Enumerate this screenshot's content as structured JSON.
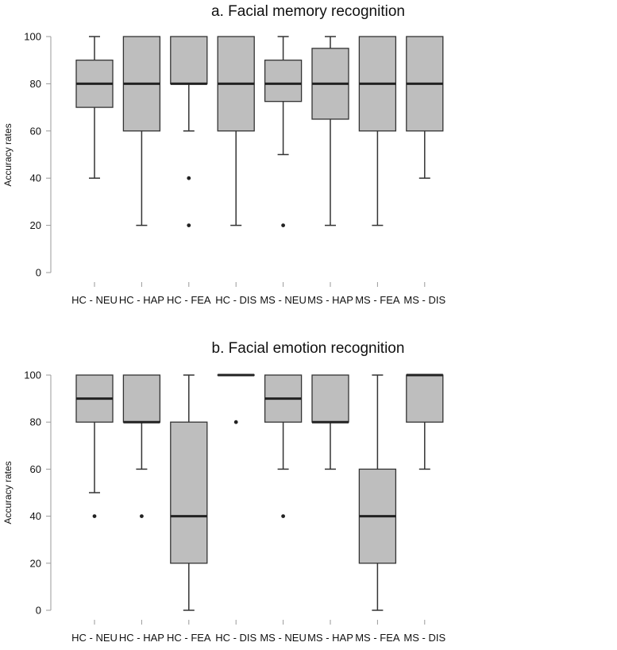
{
  "chart_data": [
    {
      "type": "boxplot",
      "title": "a. Facial memory recognition",
      "ylabel": "Accuracy rates",
      "xlabel": "",
      "ylim": [
        0,
        100
      ],
      "yticks": [
        0,
        20,
        40,
        60,
        80,
        100
      ],
      "categories": [
        "HC - NEU",
        "HC - HAP",
        "HC - FEA",
        "HC - DIS",
        "MS - NEU",
        "MS - HAP",
        "MS - FEA",
        "MS - DIS"
      ],
      "boxes": [
        {
          "min": 40,
          "q1": 70,
          "median": 80,
          "q3": 90,
          "max": 100,
          "outliers": []
        },
        {
          "min": 20,
          "q1": 60,
          "median": 80,
          "q3": 100,
          "max": 100,
          "outliers": []
        },
        {
          "min": 60,
          "q1": 80,
          "median": 80,
          "q3": 100,
          "max": 100,
          "outliers": [
            40,
            20
          ]
        },
        {
          "min": 20,
          "q1": 60,
          "median": 80,
          "q3": 100,
          "max": 100,
          "outliers": []
        },
        {
          "min": 50,
          "q1": 72.5,
          "median": 80,
          "q3": 90,
          "max": 100,
          "outliers": [
            20
          ]
        },
        {
          "min": 20,
          "q1": 65,
          "median": 80,
          "q3": 95,
          "max": 100,
          "outliers": []
        },
        {
          "min": 20,
          "q1": 60,
          "median": 80,
          "q3": 100,
          "max": 100,
          "outliers": []
        },
        {
          "min": 40,
          "q1": 60,
          "median": 80,
          "q3": 100,
          "max": 100,
          "outliers": []
        }
      ],
      "box_color": "#bebebe"
    },
    {
      "type": "boxplot",
      "title": "b. Facial emotion recognition",
      "ylabel": "Accuracy rates",
      "xlabel": "",
      "ylim": [
        0,
        100
      ],
      "yticks": [
        0,
        20,
        40,
        60,
        80,
        100
      ],
      "categories": [
        "HC - NEU",
        "HC - HAP",
        "HC - FEA",
        "HC - DIS",
        "MS - NEU",
        "MS - HAP",
        "MS - FEA",
        "MS - DIS"
      ],
      "boxes": [
        {
          "min": 50,
          "q1": 80,
          "median": 90,
          "q3": 100,
          "max": 100,
          "outliers": [
            40
          ]
        },
        {
          "min": 60,
          "q1": 80,
          "median": 80,
          "q3": 100,
          "max": 100,
          "outliers": [
            40
          ]
        },
        {
          "min": 0,
          "q1": 20,
          "median": 40,
          "q3": 80,
          "max": 100,
          "outliers": []
        },
        {
          "min": 100,
          "q1": 100,
          "median": 100,
          "q3": 100,
          "max": 100,
          "outliers": [
            80
          ]
        },
        {
          "min": 60,
          "q1": 80,
          "median": 90,
          "q3": 100,
          "max": 100,
          "outliers": [
            40
          ]
        },
        {
          "min": 60,
          "q1": 80,
          "median": 80,
          "q3": 100,
          "max": 100,
          "outliers": []
        },
        {
          "min": 0,
          "q1": 20,
          "median": 40,
          "q3": 60,
          "max": 100,
          "outliers": []
        },
        {
          "min": 60,
          "q1": 80,
          "median": 100,
          "q3": 100,
          "max": 100,
          "outliers": []
        }
      ],
      "box_color": "#bebebe"
    }
  ]
}
